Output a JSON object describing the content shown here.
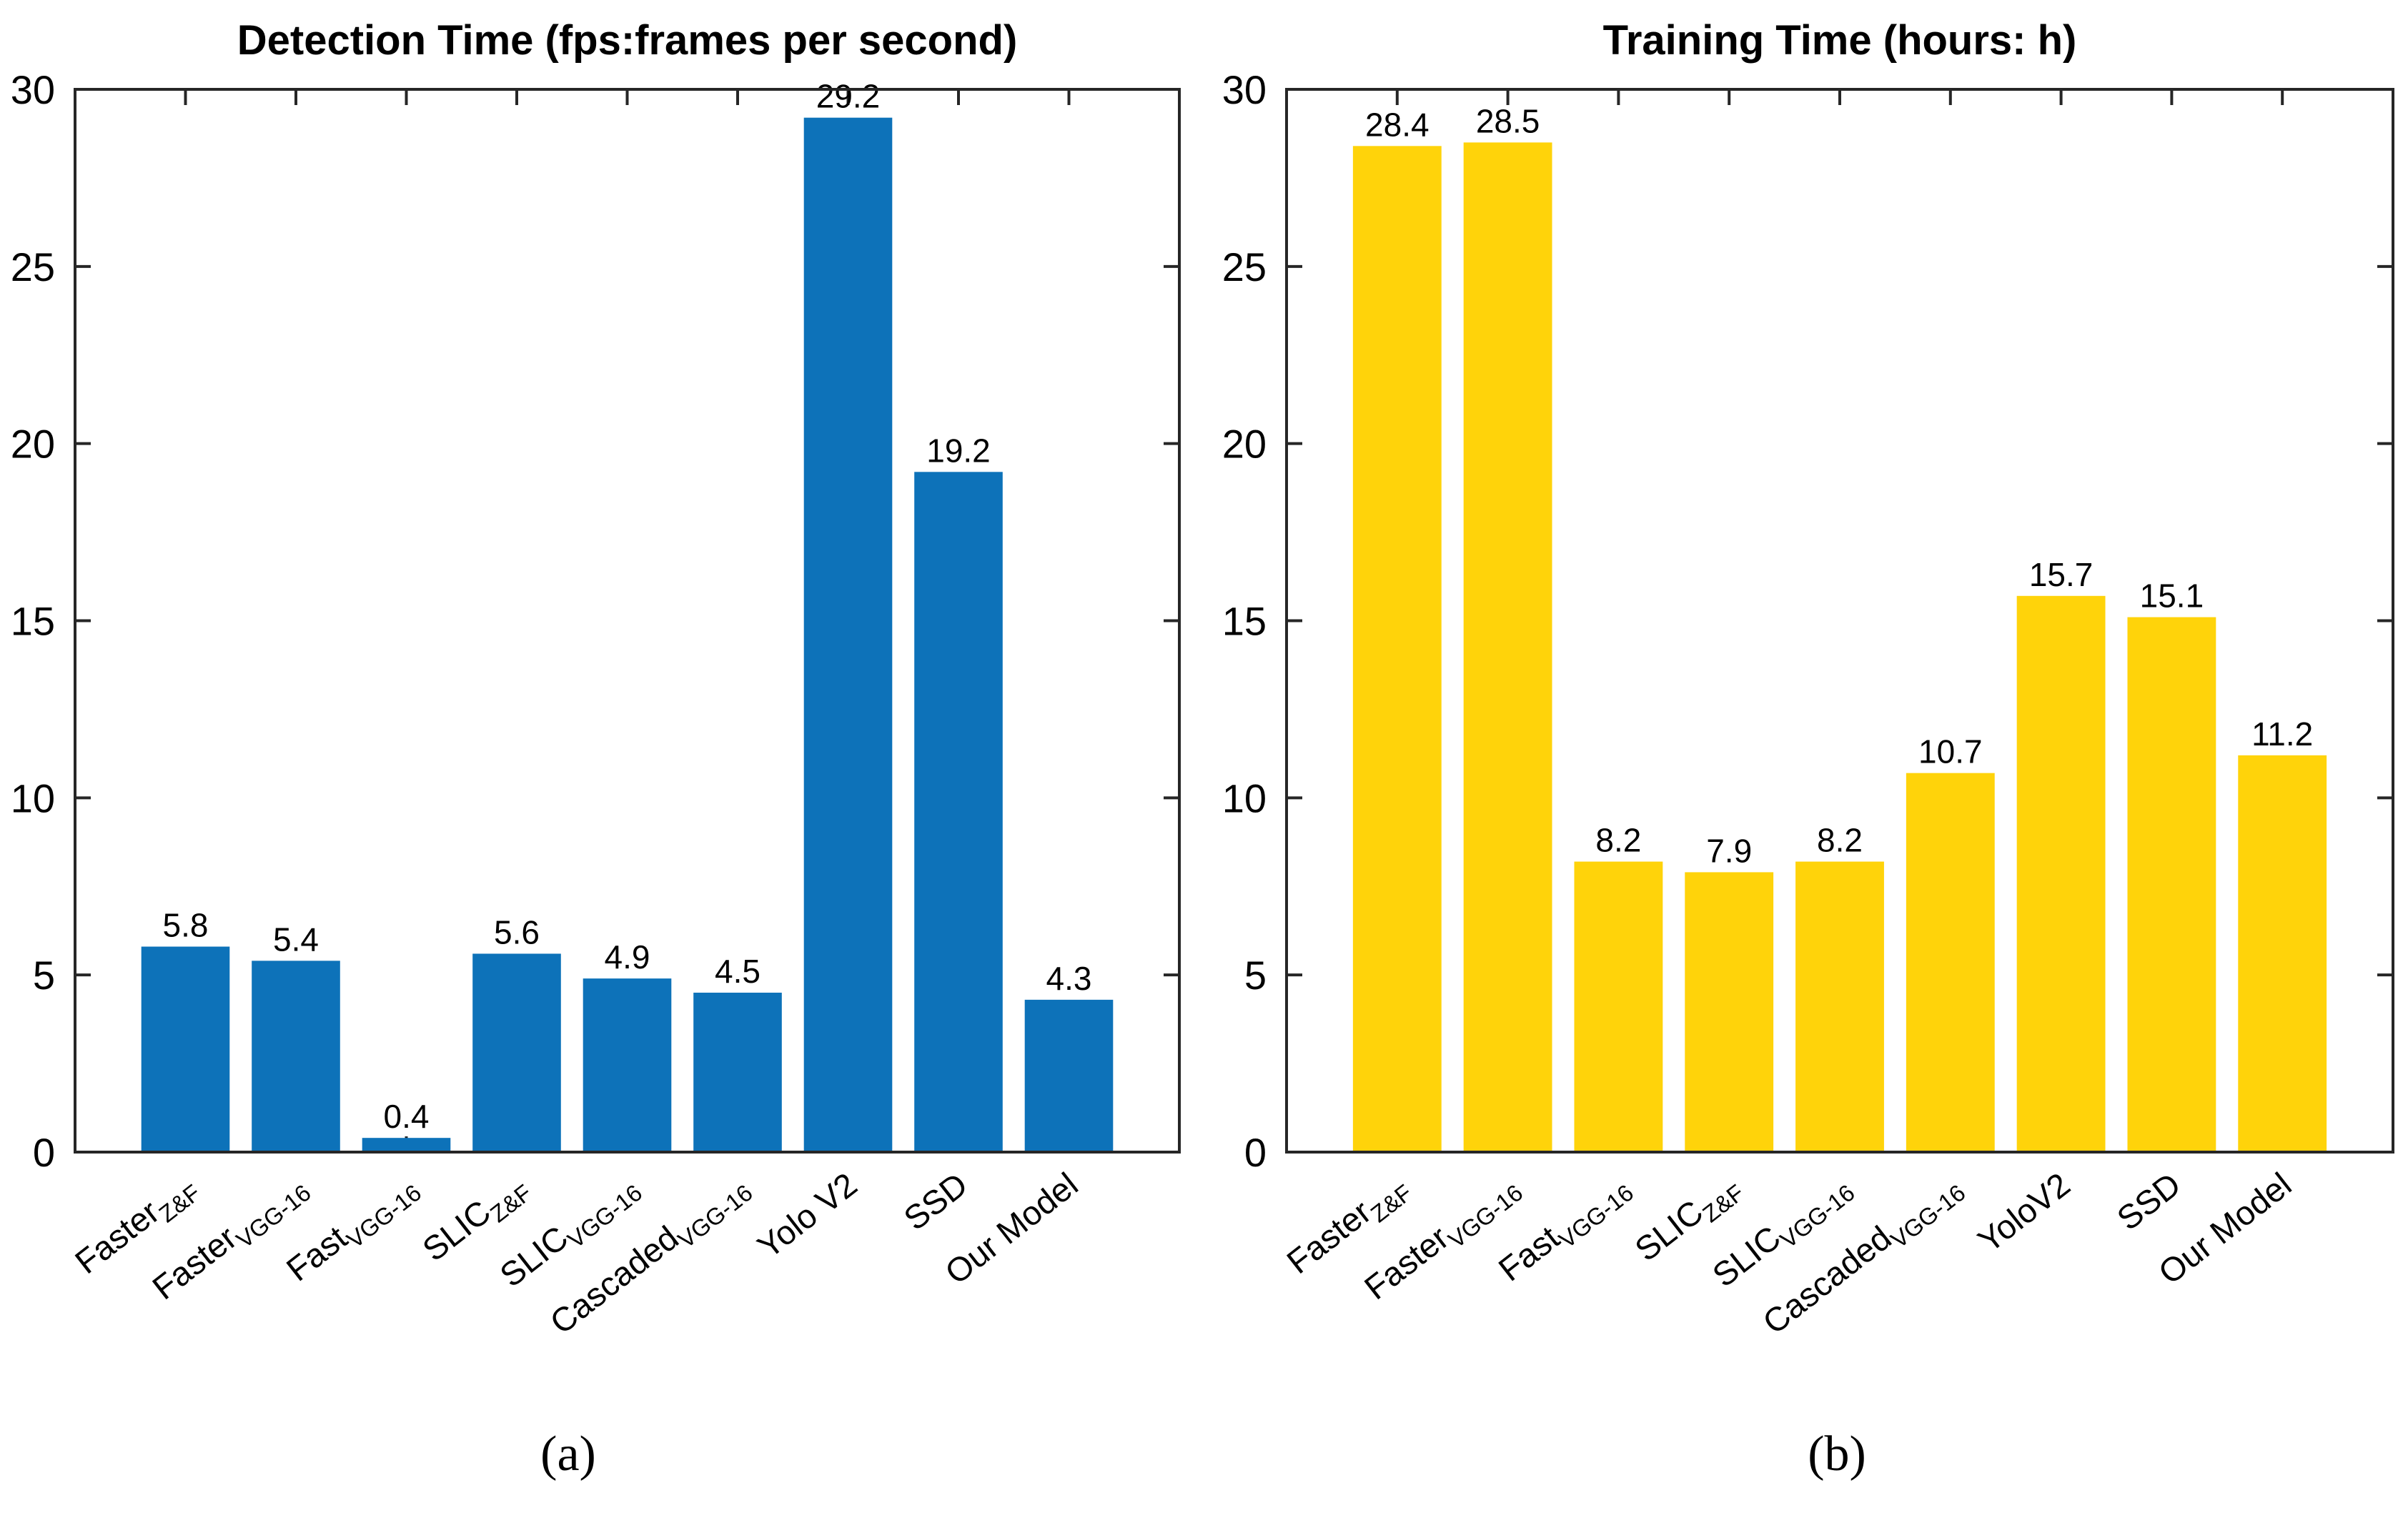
{
  "figure": {
    "caption_a": "(a)",
    "caption_b": "(b)"
  },
  "colors": {
    "detection_bar": "#0D72B9",
    "training_bar": "#FFD30A",
    "axis": "#262626",
    "text": "#000000"
  },
  "chart_data": [
    {
      "type": "bar",
      "panel": "a",
      "title": "Detection Time (fps:frames per second)",
      "categories": [
        "Faster_Z&F",
        "Faster_VGG-16",
        "Fast_VGG-16",
        "SLIC_Z&F",
        "SLIC_VGG-16",
        "Cascaded_VGG-16",
        "Yolo V2",
        "SSD",
        "Our Model"
      ],
      "categories_rich": [
        {
          "main": "Faster",
          "sub": "Z&F"
        },
        {
          "main": "Faster",
          "sub": "VGG-16"
        },
        {
          "main": "Fast",
          "sub": "VGG-16"
        },
        {
          "main": "SLIC",
          "sub": "Z&F"
        },
        {
          "main": "SLIC",
          "sub": "VGG-16"
        },
        {
          "main": "Cascaded",
          "sub": "VGG-16"
        },
        {
          "main": "Yolo V2",
          "sub": ""
        },
        {
          "main": "SSD",
          "sub": ""
        },
        {
          "main": "Our Model",
          "sub": ""
        }
      ],
      "values": [
        5.8,
        5.4,
        0.4,
        5.6,
        4.9,
        4.5,
        29.2,
        19.2,
        4.3
      ],
      "value_labels": [
        "5.8",
        "5.4",
        "0.4",
        "5.6",
        "4.9",
        "4.5",
        "29.2",
        "19.2",
        "4.3"
      ],
      "bar_color": "#0D72B9",
      "ylim": [
        0,
        30
      ],
      "yticks": [
        0,
        5,
        10,
        15,
        20,
        25,
        30
      ],
      "grid": false,
      "legend": null
    },
    {
      "type": "bar",
      "panel": "b",
      "title": "Training Time (hours: h)",
      "categories": [
        "Faster_Z&F",
        "Faster_VGG-16",
        "Fast_VGG-16",
        "SLIC_Z&F",
        "SLIC_VGG-16",
        "Cascaded_VGG-16",
        "YoloV2",
        "SSD",
        "Our Model"
      ],
      "categories_rich": [
        {
          "main": "Faster",
          "sub": "Z&F"
        },
        {
          "main": "Faster",
          "sub": "VGG-16"
        },
        {
          "main": "Fast",
          "sub": "VGG-16"
        },
        {
          "main": "SLIC",
          "sub": "Z&F"
        },
        {
          "main": "SLIC",
          "sub": "VGG-16"
        },
        {
          "main": "Cascaded",
          "sub": "VGG-16"
        },
        {
          "main": "YoloV2",
          "sub": ""
        },
        {
          "main": "SSD",
          "sub": ""
        },
        {
          "main": "Our Model",
          "sub": ""
        }
      ],
      "values": [
        28.4,
        28.5,
        8.2,
        7.9,
        8.2,
        10.7,
        15.7,
        15.1,
        11.2
      ],
      "value_labels": [
        "28.4",
        "28.5",
        "8.2",
        "7.9",
        "8.2",
        "10.7",
        "15.7",
        "15.1",
        "11.2"
      ],
      "bar_color": "#FFD30A",
      "ylim": [
        0,
        30
      ],
      "yticks": [
        0,
        5,
        10,
        15,
        20,
        25,
        30
      ],
      "grid": false,
      "legend": null
    }
  ]
}
